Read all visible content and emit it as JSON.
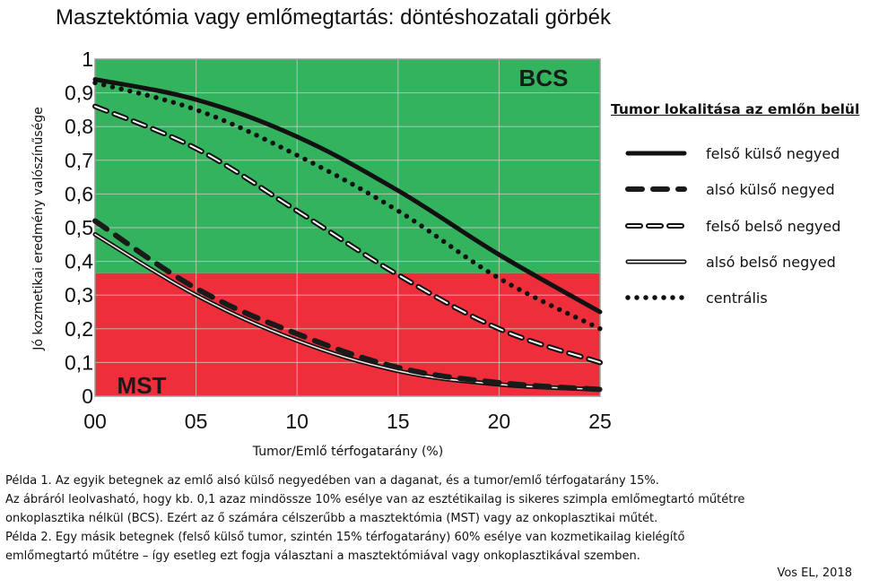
{
  "chart_data": {
    "type": "line",
    "title": "Masztektómia vagy emlőmegtartás: döntéshozatali görbék",
    "xlabel": "Tumor/Emlő térfogatarány (%)",
    "ylabel": "Jó kozmetikai eredmény valószínűsége",
    "x": [
      0,
      5,
      10,
      15,
      20,
      25
    ],
    "x_tick_labels": [
      "00",
      "05",
      "10",
      "15",
      "20",
      "25"
    ],
    "y_ticks": [
      0,
      0.1,
      0.2,
      0.3,
      0.4,
      0.5,
      0.6,
      0.7,
      0.8,
      0.9,
      1
    ],
    "y_tick_labels": [
      "0",
      "0,1",
      "0,2",
      "0,3",
      "0,4",
      "0,5",
      "0,6",
      "0,7",
      "0,8",
      "0,9",
      "1"
    ],
    "xlim": [
      0,
      25
    ],
    "ylim": [
      0,
      1
    ],
    "grid": true,
    "zones": [
      {
        "name": "BCS",
        "from": 0.365,
        "to": 1,
        "color": "#34b35f"
      },
      {
        "name": "MST",
        "from": 0,
        "to": 0.365,
        "color": "#ee2f3b"
      }
    ],
    "legend": {
      "title": "Tumor lokalitása az emlőn belül",
      "placement": "right"
    },
    "series": [
      {
        "name": "felső külső negyed",
        "style": "solid",
        "values": [
          0.94,
          0.88,
          0.77,
          0.61,
          0.42,
          0.25
        ]
      },
      {
        "name": "alsó külső negyed",
        "style": "bold-dash",
        "values": [
          0.52,
          0.32,
          0.185,
          0.085,
          0.04,
          0.02
        ]
      },
      {
        "name": "felső belső negyed",
        "style": "open-dash",
        "values": [
          0.86,
          0.735,
          0.55,
          0.36,
          0.2,
          0.1
        ]
      },
      {
        "name": "alsó belső negyed",
        "style": "double",
        "values": [
          0.48,
          0.3,
          0.165,
          0.075,
          0.035,
          0.02
        ]
      },
      {
        "name": "centrális",
        "style": "dotted",
        "values": [
          0.93,
          0.85,
          0.715,
          0.55,
          0.35,
          0.2
        ]
      }
    ]
  },
  "notes": [
    "Példa 1. Az egyik betegnek az emlő alsó külső negyedében van a daganat, és a tumor/emlő térfogatarány 15%.",
    "Az ábráról leolvasható, hogy kb. 0,1 azaz mindössze 10% esélye van az esztétikailag is sikeres szimpla emlőmegtartó műtétre",
    "onkoplasztika nélkül (BCS).  Ezért az ő számára célszerűbb a masztektómia (MST) vagy az onkoplasztikai műtét.",
    "Példa 2. Egy másik betegnek (felső külső tumor, szintén 15% térfogatarány) 60% esélye van kozmetikailag kielégítő",
    "emlőmegtartó műtétre – így esetleg ezt fogja választani a masztektómiával vagy onkoplasztikával szemben."
  ],
  "source": "Vos EL, 2018"
}
